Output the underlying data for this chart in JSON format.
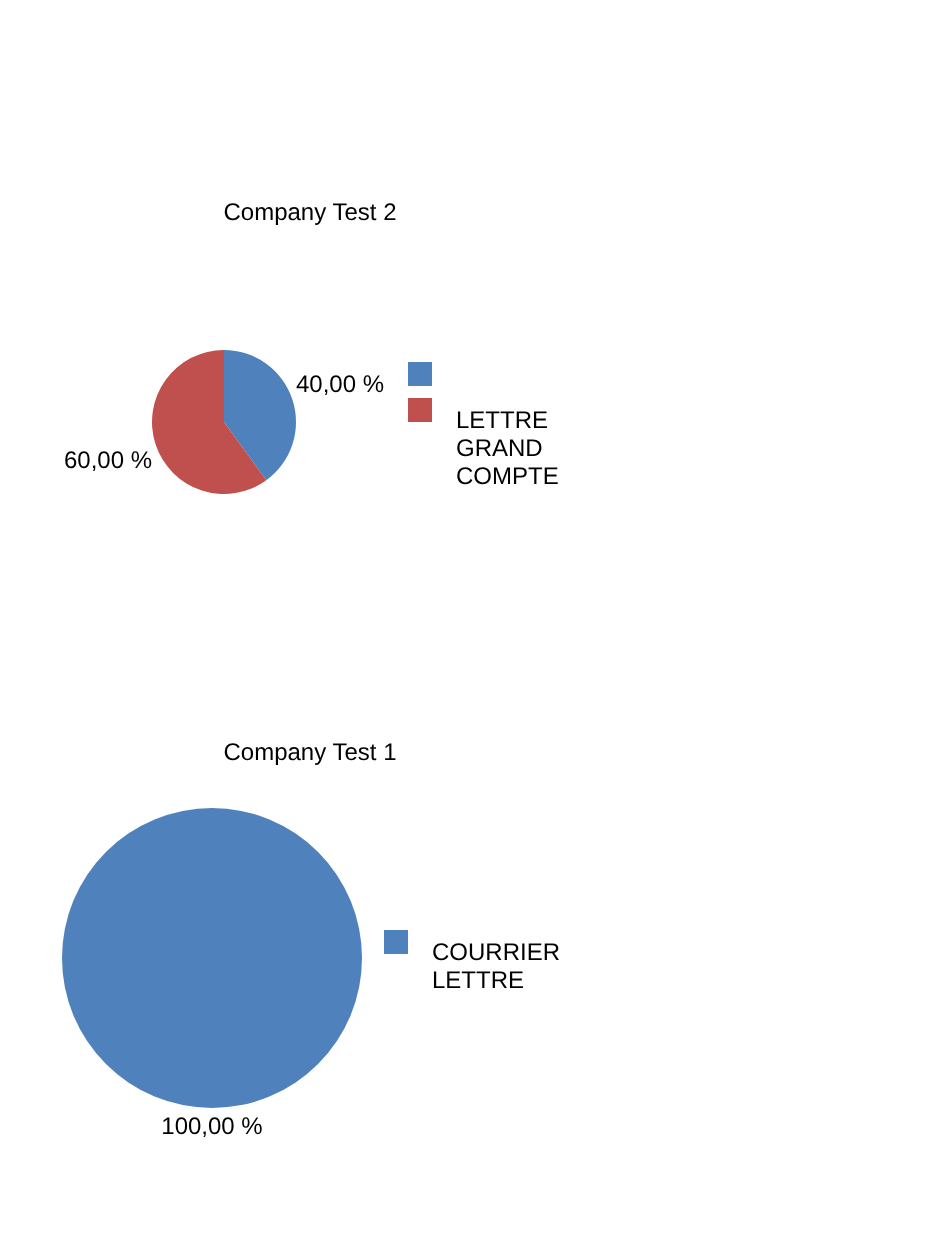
{
  "chart_data": [
    {
      "type": "pie",
      "title": "Company Test 2",
      "categories": [
        null,
        "LETTRE GRAND COMPTE"
      ],
      "values": [
        40,
        60
      ],
      "colors": [
        "#4f81bd",
        "#c0504d"
      ],
      "value_labels": [
        "40,00 %",
        "60,00 %"
      ],
      "legend": "right"
    },
    {
      "type": "pie",
      "title": "Company Test 1",
      "categories": [
        "COURRIER LETTRE"
      ],
      "values": [
        100
      ],
      "colors": [
        "#4f81bd"
      ],
      "value_labels": [
        "100,00 %"
      ],
      "legend": "right"
    }
  ]
}
